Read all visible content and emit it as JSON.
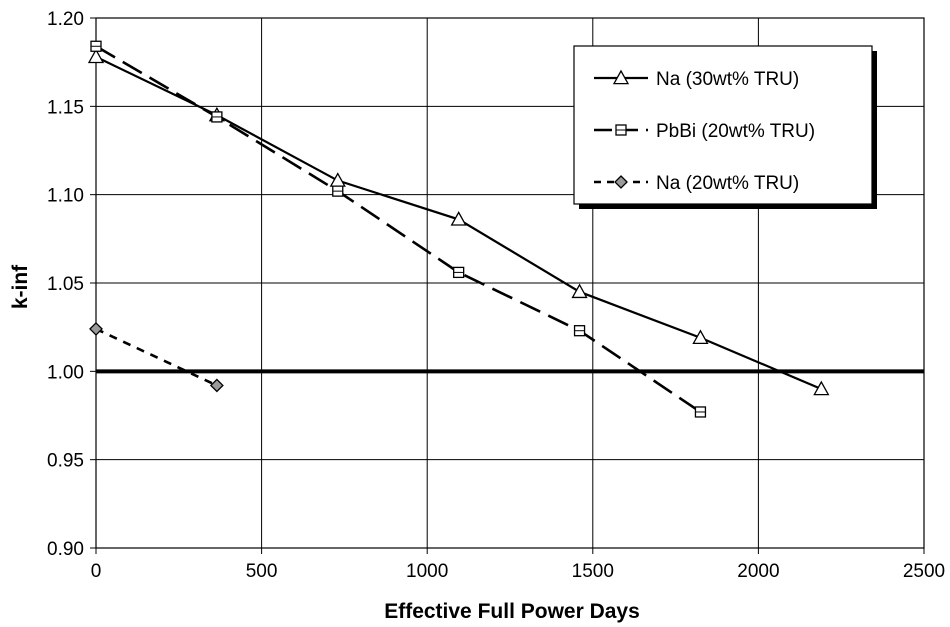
{
  "chart_data": {
    "type": "line",
    "xlabel": "Effective Full Power Days",
    "ylabel": "k-inf",
    "xlim": [
      0,
      2500
    ],
    "ylim": [
      0.9,
      1.2
    ],
    "x_ticks": [
      "0",
      "500",
      "1000",
      "1500",
      "2000",
      "2500"
    ],
    "y_ticks": [
      "0.90",
      "0.95",
      "1.00",
      "1.05",
      "1.10",
      "1.15",
      "1.20"
    ],
    "grid": true,
    "legend_position": "top-right",
    "reference_line": {
      "y": 1.0
    },
    "series": [
      {
        "name": "Na (30wt% TRU)",
        "marker": "triangle",
        "line": "solid",
        "x": [
          0,
          365,
          730,
          1095,
          1460,
          1825,
          2190
        ],
        "y": [
          1.178,
          1.145,
          1.108,
          1.086,
          1.045,
          1.019,
          0.99
        ]
      },
      {
        "name": "PbBi (20wt% TRU)",
        "marker": "square",
        "line": "long-dash",
        "x": [
          0,
          365,
          730,
          1095,
          1460,
          1825
        ],
        "y": [
          1.184,
          1.144,
          1.102,
          1.056,
          1.023,
          0.977
        ]
      },
      {
        "name": "Na (20wt% TRU)",
        "marker": "diamond",
        "line": "short-dash",
        "x": [
          0,
          365
        ],
        "y": [
          1.024,
          0.992
        ]
      }
    ]
  },
  "colors": {
    "line": "#000000",
    "grid": "#000000",
    "marker_fill": "#ffffff",
    "diamond_fill": "#9a9a9a",
    "background": "#ffffff"
  }
}
